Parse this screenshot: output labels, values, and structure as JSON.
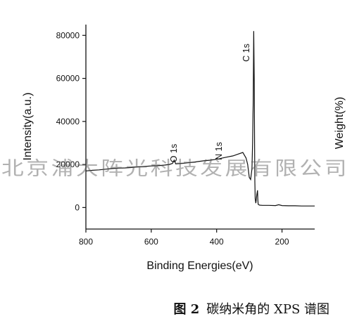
{
  "chart_data": {
    "type": "line",
    "xlabel": "Binding Energies(eV)",
    "ylabel": "Intensity(a.u.)",
    "y2label": "Weight(%)",
    "xlim": [
      800,
      100
    ],
    "ylim": [
      -10000,
      85000
    ],
    "xticks": [
      800,
      600,
      400,
      200
    ],
    "yticks": [
      0,
      20000,
      40000,
      60000,
      80000
    ],
    "grid": false,
    "series": [
      {
        "x": [
          800,
          780,
          760,
          740,
          720,
          700,
          680,
          660,
          640,
          620,
          600,
          580,
          560,
          545,
          535,
          530,
          525,
          515,
          500,
          480,
          460,
          440,
          420,
          405,
          400,
          395,
          385,
          370,
          350,
          335,
          320,
          310,
          305,
          300,
          296,
          292,
          290,
          288,
          286.5,
          285,
          284,
          283,
          282,
          280,
          277,
          275,
          274,
          273,
          270,
          268,
          260,
          240,
          220,
          210,
          200,
          180,
          160,
          140,
          120,
          100
        ],
        "y": [
          17000,
          17300,
          17500,
          17800,
          18100,
          18300,
          18400,
          18600,
          18900,
          19100,
          19300,
          19400,
          19700,
          20000,
          20500,
          22000,
          20300,
          20400,
          20600,
          20900,
          21300,
          21700,
          22000,
          22300,
          22800,
          22500,
          22900,
          23400,
          24000,
          24800,
          25600,
          23000,
          20000,
          14000,
          13000,
          18000,
          30000,
          50000,
          82000,
          60000,
          30000,
          12000,
          4000,
          2000,
          6000,
          8000,
          4000,
          1500,
          1200,
          1100,
          1000,
          1000,
          900,
          1300,
          900,
          800,
          800,
          700,
          700,
          700
        ]
      }
    ],
    "annotations": [
      "C 1s",
      "O 1s",
      "N 1s"
    ]
  },
  "watermark": "北京浦大阵光科技发展有限公司",
  "caption": {
    "label": "图 2",
    "text": "碳纳米角的 XPS 谱图"
  }
}
